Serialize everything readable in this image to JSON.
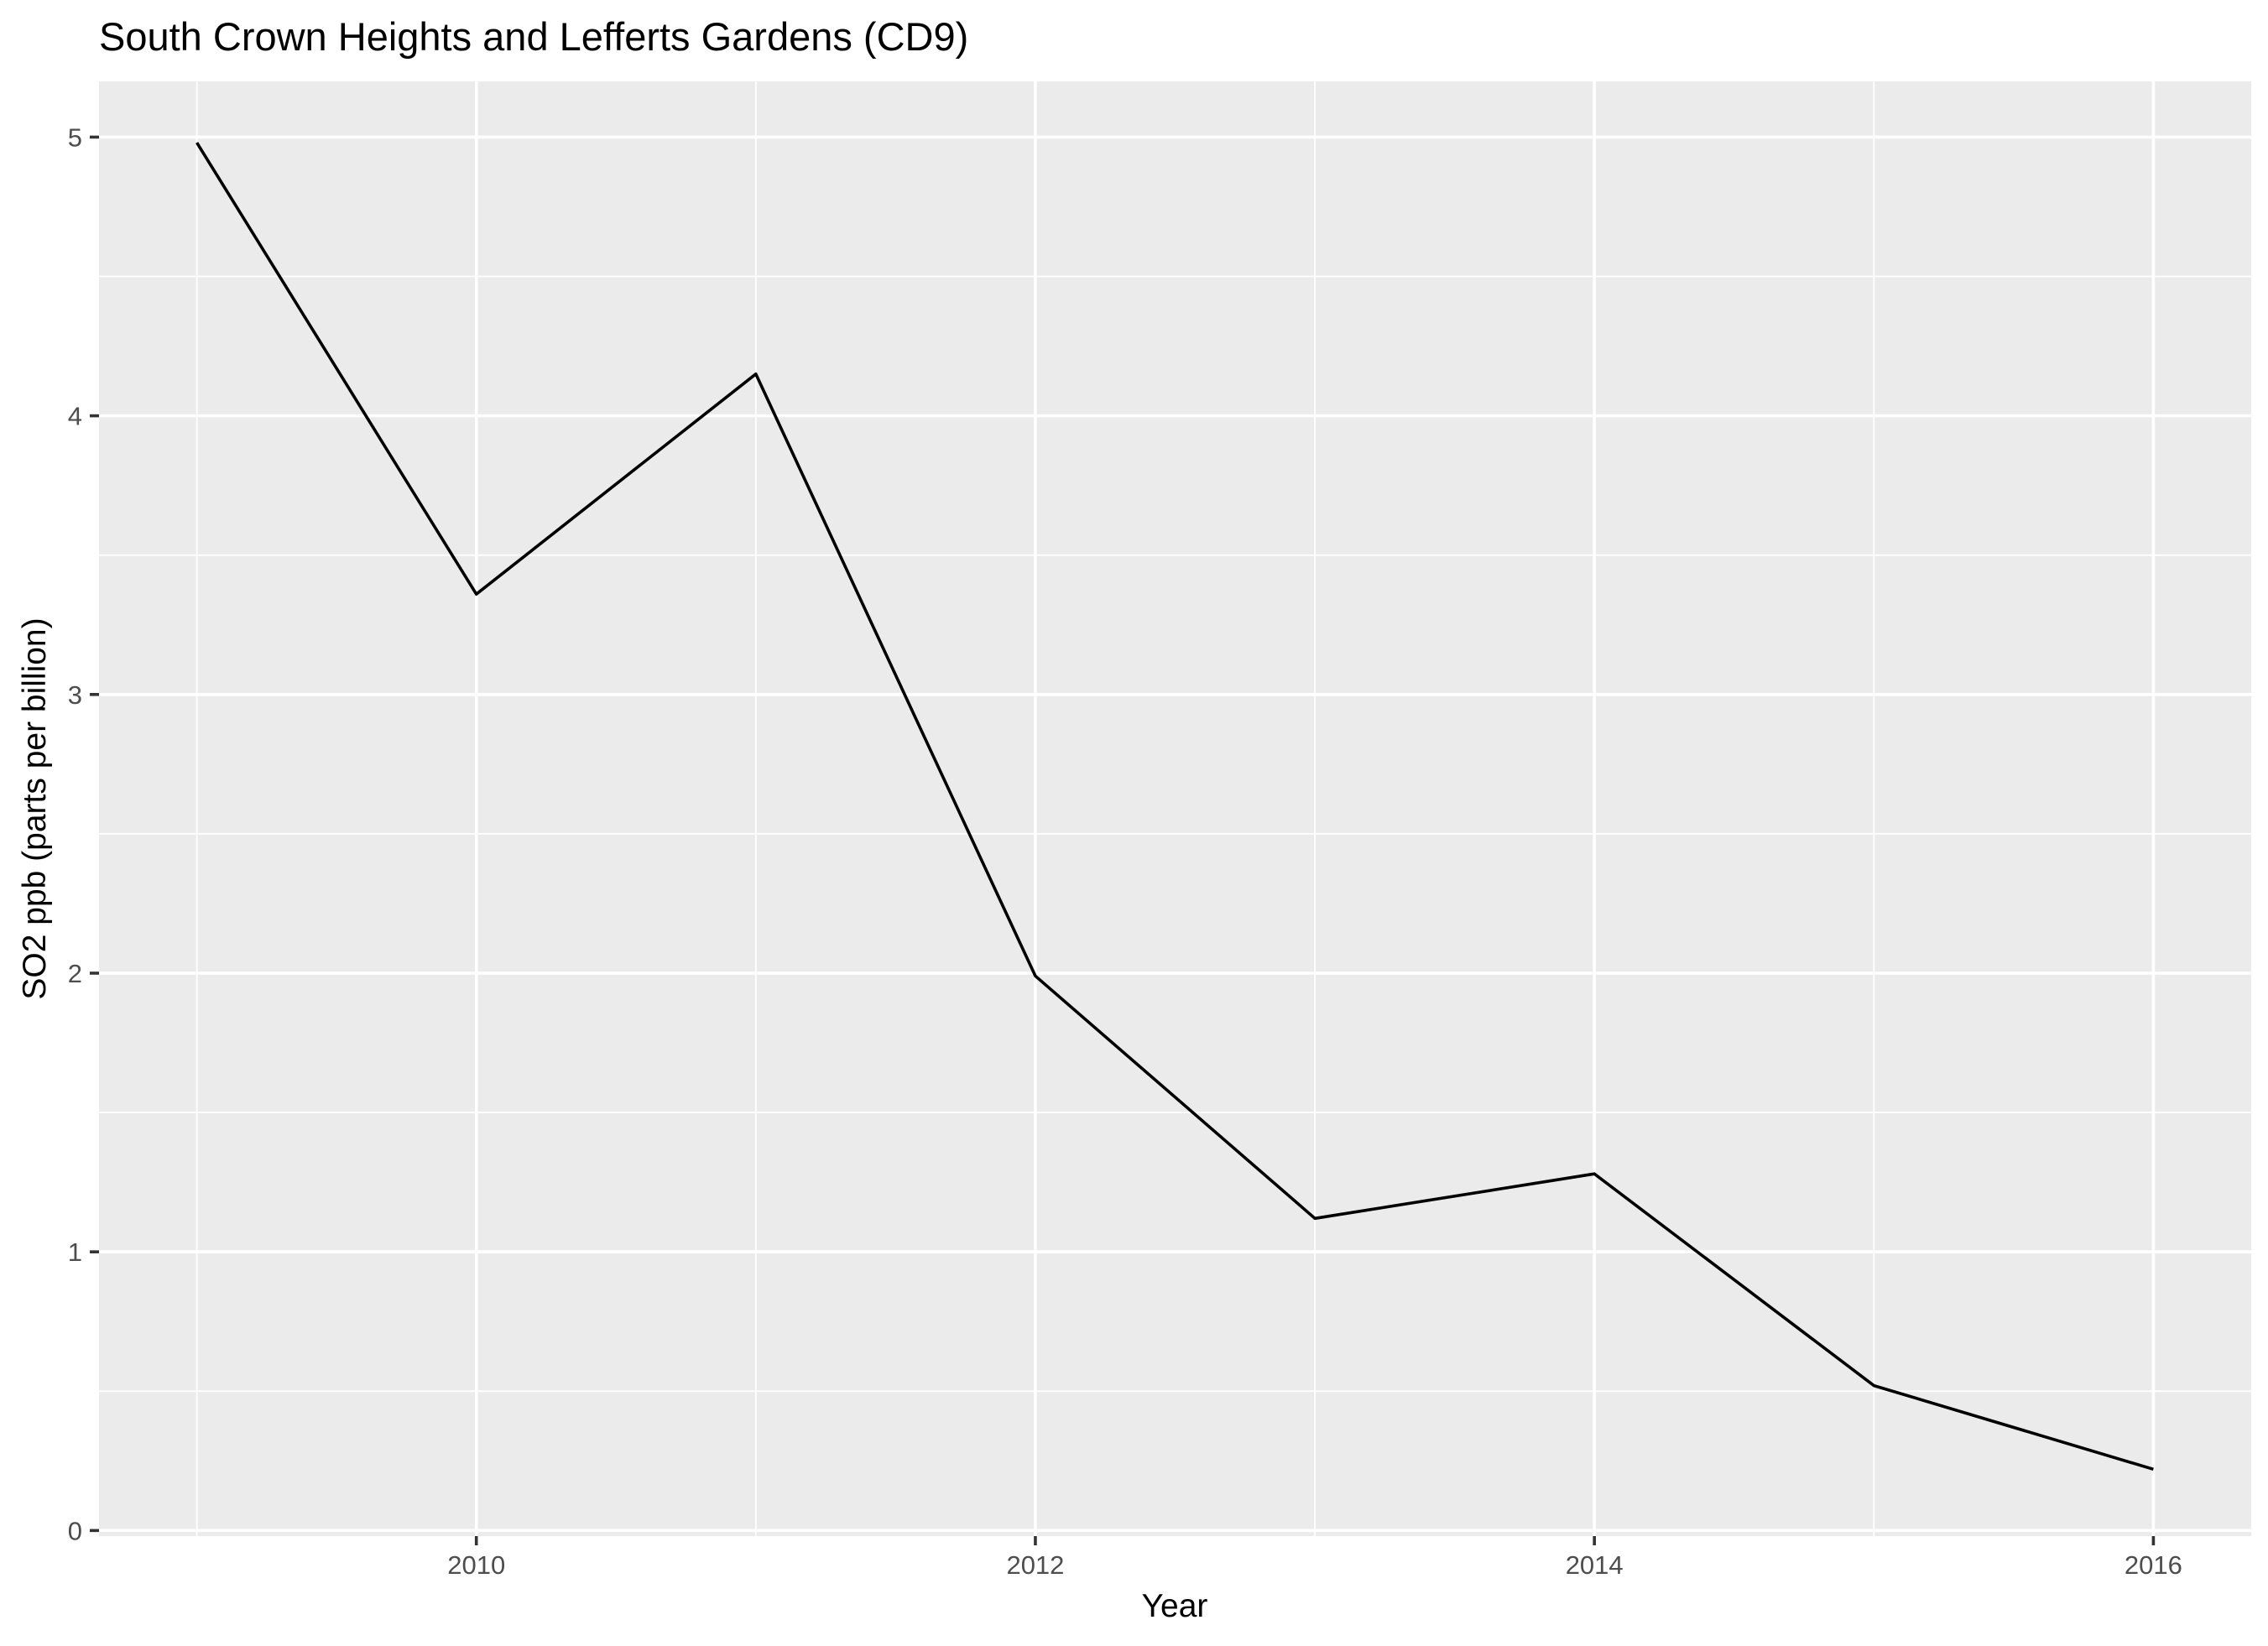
{
  "chart_data": {
    "type": "line",
    "title": "South Crown Heights and Lefferts Gardens (CD9)",
    "xlabel": "Year",
    "ylabel": "SO2 ppb (parts per billion)",
    "x": [
      2009,
      2010,
      2011,
      2012,
      2013,
      2014,
      2015,
      2016
    ],
    "series": [
      {
        "values": [
          4.98,
          3.36,
          4.15,
          1.99,
          1.12,
          1.28,
          0.52,
          0.22
        ]
      }
    ],
    "xlim": [
      2008.65,
      2016.35
    ],
    "ylim": [
      -0.02,
      5.2
    ],
    "x_major_ticks": [
      2010,
      2012,
      2014,
      2016
    ],
    "x_tick_labels": [
      "2010",
      "2012",
      "2014",
      "2016"
    ],
    "x_minor_ticks": [
      2009,
      2011,
      2013,
      2015
    ],
    "y_major_ticks": [
      0,
      1,
      2,
      3,
      4,
      5
    ],
    "y_tick_labels": [
      "0",
      "1",
      "2",
      "3",
      "4",
      "5"
    ],
    "y_minor_ticks": [
      0.5,
      1.5,
      2.5,
      3.5,
      4.5
    ],
    "grid": true,
    "legend": "none",
    "colors": {
      "panel_background": "#ebebeb",
      "grid": "#ffffff",
      "line": "#000000",
      "tick_label": "#4d4d4d"
    }
  }
}
